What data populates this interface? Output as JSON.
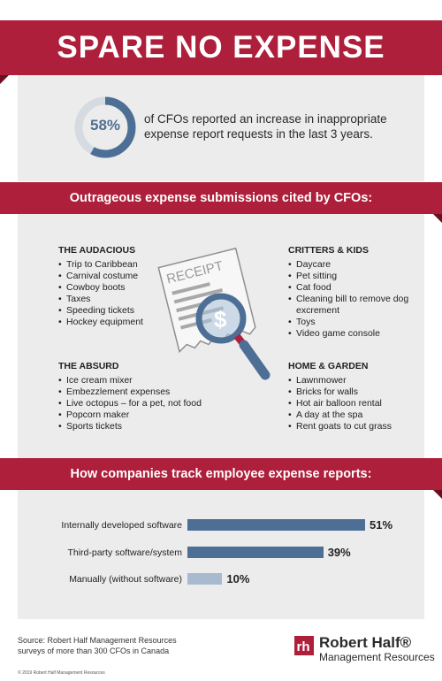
{
  "title": "SPARE NO EXPENSE",
  "stat": {
    "value": "58%",
    "percent": 58,
    "text": "of CFOs reported an increase in inappropriate expense report requests in the last 3 years."
  },
  "submissions": {
    "heading": "Outrageous expense submissions cited by CFOs:",
    "illustration_text": "RECEIPT",
    "groups": [
      {
        "title": "THE AUDACIOUS",
        "items": [
          "Trip to Caribbean",
          "Carnival costume",
          "Cowboy boots",
          "Taxes",
          "Speeding tickets",
          "Hockey equipment"
        ]
      },
      {
        "title": "CRITTERS & KIDS",
        "items": [
          "Daycare",
          "Pet sitting",
          "Cat food",
          "Cleaning bill to remove dog excrement",
          "Toys",
          "Video game console"
        ]
      },
      {
        "title": "THE ABSURD",
        "items": [
          "Ice cream mixer",
          "Embezzlement expenses",
          "Live octopus – for a pet, not food",
          "Popcorn maker",
          "Sports tickets"
        ]
      },
      {
        "title": "HOME & GARDEN",
        "items": [
          "Lawnmower",
          "Bricks for walls",
          "Hot air balloon rental",
          "A day at the spa",
          "Rent goats to cut grass"
        ]
      }
    ]
  },
  "tracking": {
    "heading": "How companies track employee expense reports:"
  },
  "chart_data": {
    "type": "bar",
    "orientation": "horizontal",
    "categories": [
      "Internally developed software",
      "Third-party software/system",
      "Manually (without software)"
    ],
    "values": [
      51,
      39,
      10
    ],
    "value_labels": [
      "51%",
      "39%",
      "10%"
    ],
    "bar_colors": [
      "#4e6f95",
      "#4e6f95",
      "#a7bacf"
    ],
    "xlim": [
      0,
      51
    ],
    "grid": false
  },
  "footer": {
    "source_line1": "Source: Robert Half Management Resources",
    "source_line2": "surveys of more than 300 CFOs in Canada",
    "copyright": "© 2019 Robert Half Management Resources",
    "logo_name": "Robert Half®",
    "logo_sub": "Management Resources"
  },
  "colors": {
    "brand_red": "#ad1f3a",
    "bar_blue": "#4e6f95",
    "bar_light_blue": "#a7bacf",
    "panel_gray": "#ececec"
  }
}
